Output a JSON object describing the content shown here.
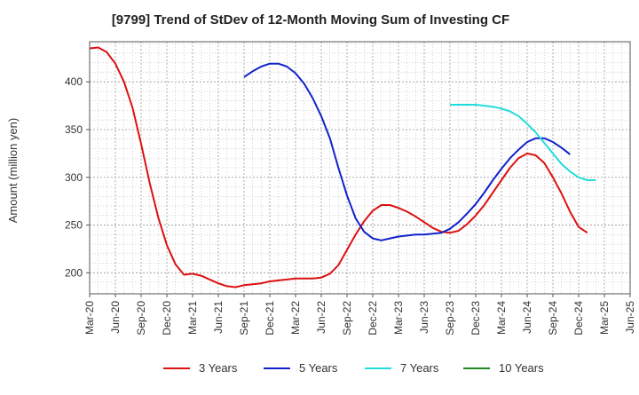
{
  "chart_data": {
    "type": "line",
    "title": "[9799]  Trend of StDev of 12-Month Moving Sum of Investing CF",
    "ylabel": "Amount (million yen)",
    "xlabel": "",
    "ylim": [
      178,
      442
    ],
    "yticks": [
      200,
      250,
      300,
      350,
      400
    ],
    "x_tick_labels": [
      "Mar-20",
      "Jun-20",
      "Sep-20",
      "Dec-20",
      "Mar-21",
      "Jun-21",
      "Sep-21",
      "Dec-21",
      "Mar-22",
      "Jun-22",
      "Sep-22",
      "Dec-22",
      "Mar-23",
      "Jun-23",
      "Sep-23",
      "Dec-23",
      "Mar-24",
      "Jun-24",
      "Sep-24",
      "Dec-24",
      "Mar-25",
      "Jun-25"
    ],
    "grid": true,
    "legend_position": "bottom",
    "series": [
      {
        "name": "3 Years",
        "color": "#dd1111",
        "start_month": 0,
        "values": [
          435,
          436,
          431,
          419,
          400,
          373,
          335,
          294,
          258,
          229,
          209,
          198,
          199,
          197,
          193,
          189,
          186,
          185,
          187,
          188,
          189,
          191,
          192,
          193,
          194,
          194,
          194,
          195,
          199,
          208,
          224,
          240,
          254,
          265,
          271,
          271,
          268,
          264,
          259,
          253,
          247,
          243,
          242,
          244,
          251,
          260,
          271,
          284,
          297,
          310,
          320,
          325,
          323,
          315,
          300,
          283,
          264,
          248,
          242
        ]
      },
      {
        "name": "5 Years",
        "color": "#1122cc",
        "start_month": 18,
        "values": [
          405,
          411,
          416,
          419,
          419,
          416,
          409,
          398,
          383,
          364,
          341,
          310,
          281,
          257,
          243,
          236,
          234,
          236,
          238,
          239,
          240,
          240,
          241,
          242,
          246,
          253,
          262,
          272,
          284,
          297,
          309,
          320,
          329,
          337,
          341,
          341,
          337,
          331,
          324
        ]
      },
      {
        "name": "7 Years",
        "color": "#22dddd",
        "start_month": 42,
        "values": [
          376,
          376,
          376,
          376,
          375,
          374,
          372,
          369,
          364,
          356,
          347,
          336,
          325,
          314,
          306,
          300,
          297,
          297
        ]
      },
      {
        "name": "10 Years",
        "color": "#228822",
        "start_month": 0,
        "values": []
      }
    ]
  }
}
